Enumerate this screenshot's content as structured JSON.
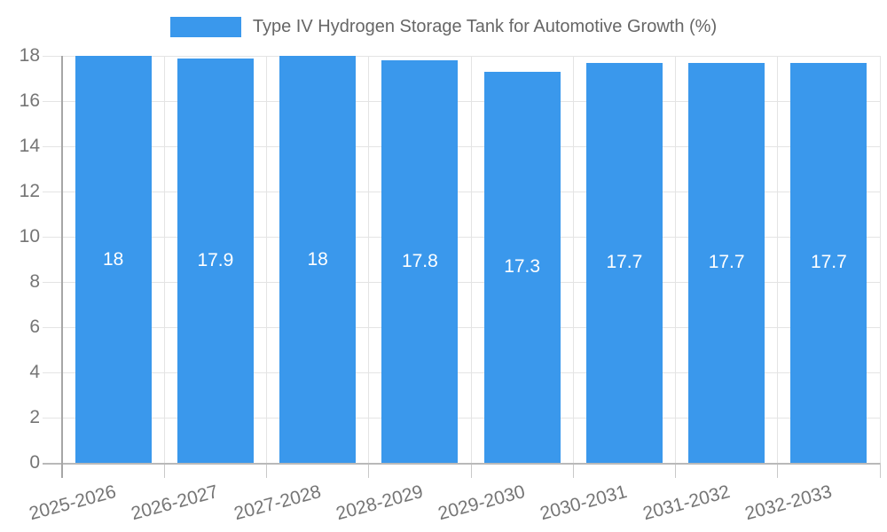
{
  "chart_data": {
    "type": "bar",
    "title": "Type IV Hydrogen Storage Tank for Automotive Growth (%)",
    "categories": [
      "2025-2026",
      "2026-2027",
      "2027-2028",
      "2028-2029",
      "2029-2030",
      "2030-2031",
      "2031-2032",
      "2032-2033"
    ],
    "values": [
      18,
      17.9,
      18,
      17.8,
      17.3,
      17.7,
      17.7,
      17.7
    ],
    "data_labels": [
      "18",
      "17.9",
      "18",
      "17.8",
      "17.3",
      "17.7",
      "17.7",
      "17.7"
    ],
    "xlabel": "",
    "ylabel": "",
    "ylim": [
      0,
      18
    ],
    "yticks": [
      0,
      2,
      4,
      6,
      8,
      10,
      12,
      14,
      16,
      18
    ],
    "grid": true,
    "legend_position": "top",
    "colors": {
      "bar": "#3a98ec",
      "bar_label_text": "#ffffff",
      "title_text": "#666666",
      "tick_text": "#757575",
      "gridline": "#e4e4e4",
      "tick_mark": "#c9c9c9",
      "axis_line": "#a6a6a6",
      "baseline": "#b9b9b9",
      "background": "#ffffff"
    }
  }
}
